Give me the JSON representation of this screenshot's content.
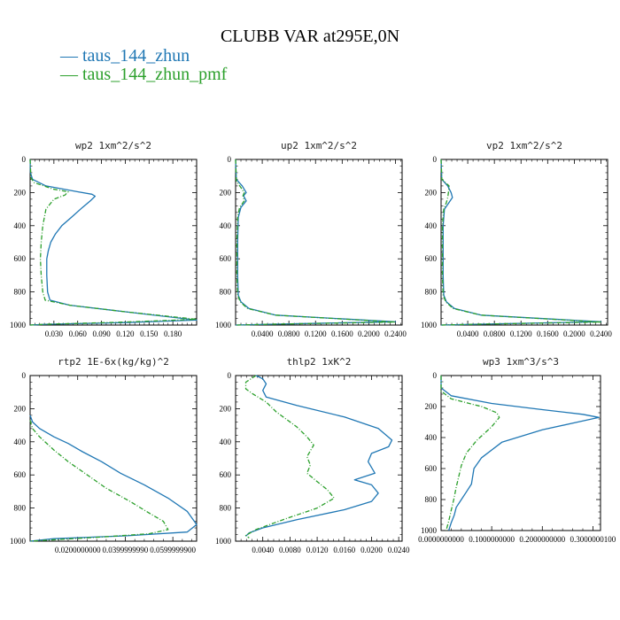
{
  "title": "CLUBB VAR at295E,0N",
  "legend": [
    {
      "label": "taus_144_zhun",
      "color": "#1f77b4",
      "dash": "solid"
    },
    {
      "label": "taus_144_zhun_pmf",
      "color": "#2ca02c",
      "dash": "dashdot"
    }
  ],
  "chart_data": [
    {
      "type": "line",
      "title": "wp2  1xm^2/s^2",
      "xlim": [
        0,
        0.21
      ],
      "ylim": [
        1000,
        0
      ],
      "xticks": [
        0.03,
        0.06,
        0.09,
        0.12,
        0.15,
        0.18
      ],
      "xtick_labels": [
        "0.030",
        "0.060",
        "0.090",
        "0.120",
        "0.150",
        "0.180"
      ],
      "yticks": [
        0,
        200,
        400,
        600,
        800,
        1000
      ],
      "series": [
        {
          "name": "taus_144_zhun",
          "x": [
            0,
            0.0005,
            0.003,
            0.02,
            0.06,
            0.078,
            0.082,
            0.076,
            0.066,
            0.052,
            0.04,
            0.032,
            0.026,
            0.023,
            0.021,
            0.021,
            0.022,
            0.025,
            0.05,
            0.12,
            0.21,
            0.12,
            0.02,
            0.0
          ],
          "y": [
            0,
            80,
            120,
            160,
            195,
            210,
            222,
            250,
            290,
            350,
            400,
            450,
            500,
            550,
            600,
            700,
            800,
            850,
            880,
            920,
            970,
            985,
            995,
            1000
          ]
        },
        {
          "name": "taus_144_zhun_pmf",
          "x": [
            0,
            0.001,
            0.005,
            0.03,
            0.048,
            0.044,
            0.03,
            0.02,
            0.016,
            0.014,
            0.013,
            0.014,
            0.016,
            0.019,
            0.05,
            0.12,
            0.21,
            0.12,
            0.02,
            0.0
          ],
          "y": [
            0,
            110,
            140,
            180,
            195,
            215,
            240,
            300,
            400,
            500,
            600,
            700,
            800,
            850,
            880,
            920,
            965,
            982,
            995,
            1000
          ]
        }
      ]
    },
    {
      "type": "line",
      "title": "up2  1xm^2/s^2",
      "xlim": [
        0,
        0.25
      ],
      "ylim": [
        1000,
        0
      ],
      "xticks": [
        0.04,
        0.08,
        0.12,
        0.16,
        0.2,
        0.24
      ],
      "xtick_labels": [
        "0.0400",
        "0.0800",
        "0.1200",
        "0.1600",
        "0.2000",
        "0.2400"
      ],
      "yticks": [
        0,
        200,
        400,
        600,
        800,
        1000
      ],
      "series": [
        {
          "name": "taus_144_zhun",
          "x": [
            0,
            0.001,
            0.01,
            0.016,
            0.012,
            0.016,
            0.008,
            0.004,
            0.003,
            0.003,
            0.004,
            0.008,
            0.02,
            0.06,
            0.24,
            0.05,
            0.0
          ],
          "y": [
            0,
            120,
            160,
            200,
            220,
            250,
            290,
            350,
            500,
            700,
            820,
            860,
            900,
            940,
            980,
            995,
            1000
          ]
        },
        {
          "name": "taus_144_zhun_pmf",
          "x": [
            0,
            0.001,
            0.008,
            0.013,
            0.011,
            0.013,
            0.006,
            0.003,
            0.002,
            0.002,
            0.003,
            0.007,
            0.018,
            0.06,
            0.24,
            0.05,
            0.0
          ],
          "y": [
            0,
            130,
            170,
            200,
            220,
            250,
            290,
            350,
            500,
            700,
            820,
            860,
            900,
            940,
            982,
            995,
            1000
          ]
        }
      ]
    },
    {
      "type": "line",
      "title": "vp2  1xm^2/s^2",
      "xlim": [
        0,
        0.25
      ],
      "ylim": [
        1000,
        0
      ],
      "xticks": [
        0.04,
        0.08,
        0.12,
        0.16,
        0.2,
        0.24
      ],
      "xtick_labels": [
        "0.0400",
        "0.0800",
        "0.1200",
        "0.1600",
        "0.2000",
        "0.2400"
      ],
      "yticks": [
        0,
        200,
        400,
        600,
        800,
        1000
      ],
      "series": [
        {
          "name": "taus_144_zhun",
          "x": [
            0,
            0.001,
            0.01,
            0.015,
            0.017,
            0.012,
            0.005,
            0.003,
            0.003,
            0.004,
            0.008,
            0.02,
            0.06,
            0.24,
            0.05,
            0.0
          ],
          "y": [
            0,
            120,
            160,
            200,
            230,
            260,
            300,
            400,
            700,
            820,
            860,
            900,
            940,
            980,
            995,
            1000
          ]
        },
        {
          "name": "taus_144_zhun_pmf",
          "x": [
            0,
            0.001,
            0.012,
            0.011,
            0.01,
            0.008,
            0.004,
            0.002,
            0.002,
            0.003,
            0.007,
            0.018,
            0.06,
            0.24,
            0.05,
            0.0
          ],
          "y": [
            0,
            120,
            160,
            200,
            230,
            260,
            300,
            400,
            700,
            820,
            860,
            900,
            940,
            982,
            995,
            1000
          ]
        }
      ]
    },
    {
      "type": "line",
      "title": "rtp2  1E-6x(kg/kg)^2",
      "xlim": [
        0,
        0.07
      ],
      "ylim": [
        1000,
        0
      ],
      "xticks": [
        0.02,
        0.04,
        0.06
      ],
      "xtick_labels": [
        "0.0200000000",
        "0.0399999990",
        "0.0599999900"
      ],
      "yticks": [
        0,
        200,
        400,
        600,
        800,
        1000
      ],
      "series": [
        {
          "name": "taus_144_zhun",
          "x": [
            0,
            0.001,
            0.004,
            0.01,
            0.016,
            0.022,
            0.03,
            0.038,
            0.048,
            0.058,
            0.066,
            0.07,
            0.066,
            0.04,
            0.01,
            0.0
          ],
          "y": [
            240,
            280,
            320,
            370,
            410,
            460,
            520,
            590,
            660,
            740,
            820,
            900,
            945,
            968,
            985,
            1000
          ]
        },
        {
          "name": "taus_144_zhun_pmf",
          "x": [
            0,
            0.001,
            0.004,
            0.01,
            0.016,
            0.024,
            0.032,
            0.042,
            0.05,
            0.056,
            0.058,
            0.05,
            0.03,
            0.012,
            0.0
          ],
          "y": [
            270,
            320,
            370,
            450,
            520,
            600,
            680,
            760,
            830,
            880,
            930,
            955,
            975,
            990,
            1000
          ]
        }
      ]
    },
    {
      "type": "line",
      "title": "thlp2  1xK^2",
      "xlim": [
        0,
        0.0245
      ],
      "ylim": [
        1000,
        0
      ],
      "xticks": [
        0.004,
        0.008,
        0.012,
        0.016,
        0.02,
        0.024
      ],
      "xtick_labels": [
        "0.0040",
        "0.0080",
        "0.0120",
        "0.0160",
        "0.0200",
        "0.0240"
      ],
      "yticks": [
        0,
        200,
        400,
        600,
        800,
        1000
      ],
      "series": [
        {
          "name": "taus_144_zhun",
          "x": [
            0.003,
            0.004,
            0.0045,
            0.004,
            0.0045,
            0.009,
            0.016,
            0.021,
            0.023,
            0.0225,
            0.02,
            0.0195,
            0.0205,
            0.0175,
            0.02,
            0.021,
            0.02,
            0.016,
            0.009,
            0.004,
            0.002,
            0.0015
          ],
          "y": [
            0,
            20,
            50,
            90,
            130,
            180,
            250,
            320,
            390,
            430,
            470,
            520,
            590,
            630,
            660,
            710,
            760,
            810,
            870,
            920,
            950,
            970
          ]
        },
        {
          "name": "taus_144_zhun_pmf",
          "x": [
            0.003,
            0.0015,
            0.0015,
            0.0025,
            0.0045,
            0.006,
            0.009,
            0.0105,
            0.0115,
            0.0105,
            0.011,
            0.0105,
            0.012,
            0.0135,
            0.0145,
            0.012,
            0.007,
            0.003,
            0.0015,
            0.002
          ],
          "y": [
            0,
            40,
            80,
            110,
            160,
            220,
            310,
            370,
            420,
            490,
            540,
            590,
            640,
            690,
            740,
            800,
            870,
            930,
            965,
            980
          ]
        }
      ]
    },
    {
      "type": "line",
      "title": "wp3  1xm^3/s^3",
      "xlim": [
        0,
        0.315
      ],
      "ylim": [
        1000,
        0
      ],
      "xticks": [
        0.0,
        0.1,
        0.2,
        0.3
      ],
      "xtick_labels": [
        "0.0000000000",
        "0.1000000000",
        "0.2000000000",
        "0.3000000100"
      ],
      "yticks": [
        0,
        200,
        400,
        600,
        800,
        1000
      ],
      "series": [
        {
          "name": "taus_144_zhun",
          "x": [
            0,
            0.0,
            0.02,
            0.1,
            0.2,
            0.28,
            0.312,
            0.27,
            0.2,
            0.12,
            0.08,
            0.065,
            0.06,
            0.05,
            0.04,
            0.03,
            0.026,
            0.02,
            0.015
          ],
          "y": [
            0,
            80,
            130,
            180,
            220,
            250,
            270,
            300,
            350,
            430,
            530,
            600,
            700,
            750,
            800,
            850,
            900,
            950,
            1000
          ]
        },
        {
          "name": "taus_144_zhun_pmf",
          "x": [
            0,
            0.0,
            0.02,
            0.08,
            0.11,
            0.115,
            0.1,
            0.07,
            0.05,
            0.04,
            0.035,
            0.03,
            0.025,
            0.02,
            0.015,
            0.01
          ],
          "y": [
            0,
            100,
            150,
            200,
            240,
            270,
            330,
            420,
            500,
            580,
            650,
            720,
            800,
            870,
            940,
            1000
          ]
        }
      ]
    }
  ]
}
